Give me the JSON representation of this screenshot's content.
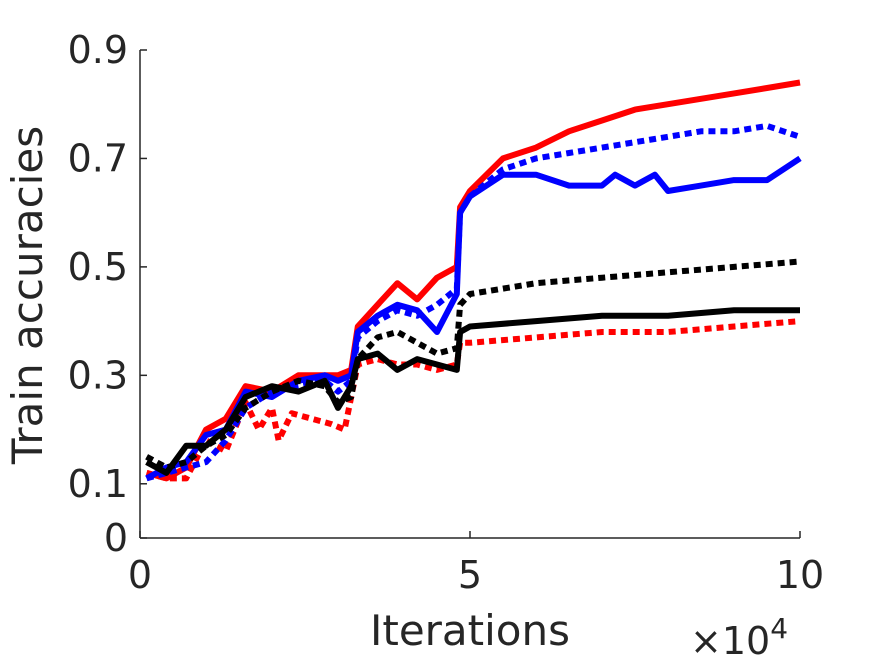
{
  "chart_data": {
    "type": "line",
    "xlabel": "Iterations",
    "ylabel": "Train accuracies",
    "x_multiplier_label": "×10",
    "x_multiplier_exponent": "4",
    "xlim": [
      0,
      10
    ],
    "ylim": [
      0,
      0.9
    ],
    "xticks": [
      {
        "value": 0,
        "label": "0"
      },
      {
        "value": 5,
        "label": "5"
      },
      {
        "value": 10,
        "label": "10"
      }
    ],
    "yticks": [
      {
        "value": 0,
        "label": "0"
      },
      {
        "value": 0.1,
        "label": "0.1"
      },
      {
        "value": 0.3,
        "label": "0.3"
      },
      {
        "value": 0.5,
        "label": "0.5"
      },
      {
        "value": 0.7,
        "label": "0.7"
      },
      {
        "value": 0.9,
        "label": "0.9"
      }
    ],
    "grid": false,
    "series": [
      {
        "color": "#ff0000",
        "style": "solid",
        "x": [
          0.1,
          0.4,
          0.7,
          1.0,
          1.3,
          1.6,
          2.0,
          2.4,
          2.8,
          3.0,
          3.2,
          3.3,
          3.6,
          3.9,
          4.2,
          4.5,
          4.8,
          4.85,
          5.0,
          5.5,
          6.0,
          6.5,
          7.0,
          7.5,
          8.0,
          8.5,
          9.0,
          9.5,
          10.0
        ],
        "y": [
          0.12,
          0.11,
          0.13,
          0.2,
          0.22,
          0.28,
          0.27,
          0.3,
          0.3,
          0.3,
          0.31,
          0.39,
          0.43,
          0.47,
          0.44,
          0.48,
          0.5,
          0.61,
          0.64,
          0.7,
          0.72,
          0.75,
          0.77,
          0.79,
          0.8,
          0.81,
          0.82,
          0.83,
          0.84
        ]
      },
      {
        "color": "#ff0000",
        "style": "dotted",
        "x": [
          0.1,
          0.4,
          0.7,
          1.0,
          1.3,
          1.6,
          1.8,
          2.0,
          2.1,
          2.3,
          2.6,
          2.9,
          3.1,
          3.3,
          3.6,
          3.9,
          4.2,
          4.5,
          4.8,
          4.85,
          5.0,
          6.0,
          7.0,
          8.0,
          9.0,
          10.0
        ],
        "y": [
          0.12,
          0.11,
          0.11,
          0.18,
          0.16,
          0.25,
          0.2,
          0.24,
          0.18,
          0.23,
          0.22,
          0.21,
          0.2,
          0.32,
          0.33,
          0.32,
          0.32,
          0.31,
          0.32,
          0.36,
          0.36,
          0.37,
          0.38,
          0.38,
          0.39,
          0.4
        ]
      },
      {
        "color": "#0000ff",
        "style": "solid",
        "x": [
          0.1,
          0.4,
          0.7,
          1.0,
          1.3,
          1.6,
          2.0,
          2.4,
          2.8,
          3.0,
          3.2,
          3.3,
          3.6,
          3.9,
          4.2,
          4.5,
          4.8,
          4.85,
          5.0,
          5.5,
          6.0,
          6.5,
          7.0,
          7.2,
          7.5,
          7.8,
          8.0,
          8.5,
          9.0,
          9.5,
          10.0
        ],
        "y": [
          0.11,
          0.13,
          0.14,
          0.19,
          0.2,
          0.27,
          0.26,
          0.29,
          0.3,
          0.29,
          0.3,
          0.38,
          0.41,
          0.43,
          0.42,
          0.38,
          0.45,
          0.6,
          0.63,
          0.67,
          0.67,
          0.65,
          0.65,
          0.67,
          0.65,
          0.67,
          0.64,
          0.65,
          0.66,
          0.66,
          0.7
        ]
      },
      {
        "color": "#0000ff",
        "style": "dotted",
        "x": [
          0.1,
          0.4,
          0.7,
          1.0,
          1.3,
          1.6,
          2.0,
          2.4,
          2.8,
          3.0,
          3.2,
          3.3,
          3.6,
          3.9,
          4.2,
          4.5,
          4.8,
          4.85,
          5.0,
          5.5,
          6.0,
          6.5,
          7.0,
          7.5,
          8.0,
          8.5,
          9.0,
          9.5,
          10.0
        ],
        "y": [
          0.11,
          0.12,
          0.13,
          0.14,
          0.18,
          0.24,
          0.27,
          0.28,
          0.29,
          0.27,
          0.29,
          0.37,
          0.4,
          0.42,
          0.41,
          0.43,
          0.46,
          0.6,
          0.63,
          0.68,
          0.7,
          0.71,
          0.72,
          0.73,
          0.74,
          0.75,
          0.75,
          0.76,
          0.74
        ]
      },
      {
        "color": "#000000",
        "style": "solid",
        "x": [
          0.1,
          0.4,
          0.7,
          1.0,
          1.3,
          1.6,
          2.0,
          2.4,
          2.8,
          3.0,
          3.2,
          3.3,
          3.6,
          3.9,
          4.2,
          4.5,
          4.8,
          4.85,
          5.0,
          6.0,
          7.0,
          8.0,
          9.0,
          10.0
        ],
        "y": [
          0.14,
          0.12,
          0.17,
          0.17,
          0.2,
          0.26,
          0.28,
          0.27,
          0.29,
          0.24,
          0.28,
          0.33,
          0.34,
          0.31,
          0.33,
          0.32,
          0.31,
          0.38,
          0.39,
          0.4,
          0.41,
          0.41,
          0.42,
          0.42
        ]
      },
      {
        "color": "#000000",
        "style": "dotted",
        "x": [
          0.1,
          0.4,
          0.7,
          1.0,
          1.3,
          1.6,
          2.0,
          2.4,
          2.8,
          3.0,
          3.2,
          3.3,
          3.6,
          3.9,
          4.2,
          4.5,
          4.8,
          4.85,
          5.0,
          6.0,
          7.0,
          8.0,
          9.0,
          10.0
        ],
        "y": [
          0.15,
          0.13,
          0.14,
          0.17,
          0.19,
          0.24,
          0.27,
          0.29,
          0.28,
          0.25,
          0.26,
          0.33,
          0.37,
          0.38,
          0.36,
          0.34,
          0.35,
          0.43,
          0.45,
          0.47,
          0.48,
          0.49,
          0.5,
          0.51
        ]
      }
    ]
  }
}
